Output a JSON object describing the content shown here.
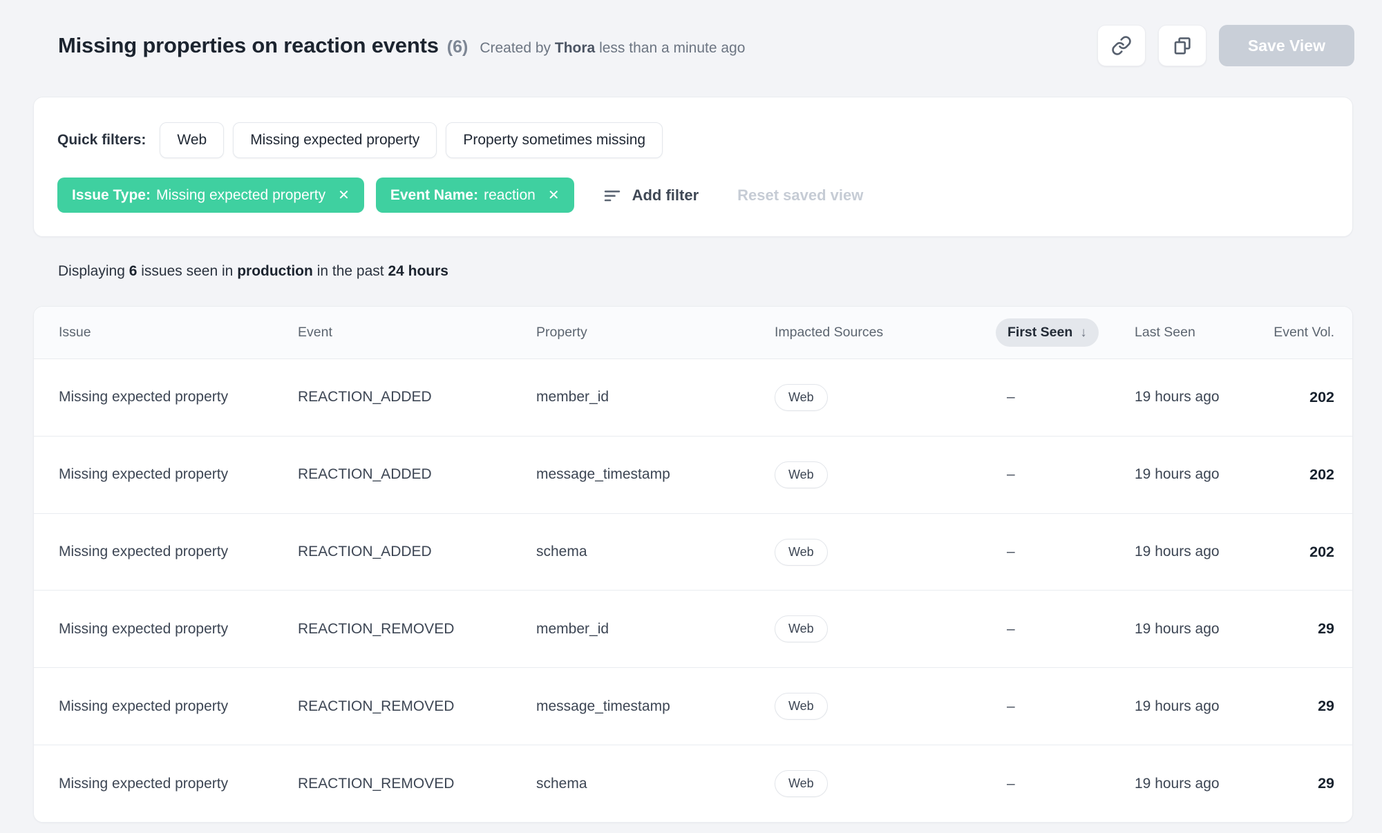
{
  "colors": {
    "accent_green": "#3fd0a0",
    "page_bg": "#f3f4f7",
    "disabled_button_bg": "#c9cfd8"
  },
  "icons": {
    "close_glyph": "✕",
    "sort_desc_glyph": "↓"
  },
  "header": {
    "title": "Missing properties on reaction events",
    "count": "(6)",
    "created_prefix": "Created by",
    "created_name": "Thora",
    "created_suffix": "less than a minute ago",
    "save_view_label": "Save View"
  },
  "filters": {
    "quick_filters_label": "Quick filters:",
    "quick_filters": [
      "Web",
      "Missing expected property",
      "Property sometimes missing"
    ],
    "active_filters": [
      {
        "label": "Issue Type:",
        "value": "Missing expected property"
      },
      {
        "label": "Event Name:",
        "value": "reaction"
      }
    ],
    "add_filter_label": "Add filter",
    "reset_label": "Reset saved view"
  },
  "summary": {
    "prefix": "Displaying",
    "count": "6",
    "mid1": "issues seen in",
    "environment": "production",
    "mid2": "in the past",
    "range": "24 hours"
  },
  "table": {
    "columns": [
      "Issue",
      "Event",
      "Property",
      "Impacted Sources",
      "First Seen",
      "Last Seen",
      "Event Vol."
    ],
    "sorted_by": "First Seen",
    "sort_direction": "desc",
    "rows": [
      {
        "issue": "Missing expected property",
        "event": "REACTION_ADDED",
        "property": "member_id",
        "sources": [
          "Web"
        ],
        "first_seen": "–",
        "last_seen": "19 hours ago",
        "event_vol": "202"
      },
      {
        "issue": "Missing expected property",
        "event": "REACTION_ADDED",
        "property": "message_timestamp",
        "sources": [
          "Web"
        ],
        "first_seen": "–",
        "last_seen": "19 hours ago",
        "event_vol": "202"
      },
      {
        "issue": "Missing expected property",
        "event": "REACTION_ADDED",
        "property": "schema",
        "sources": [
          "Web"
        ],
        "first_seen": "–",
        "last_seen": "19 hours ago",
        "event_vol": "202"
      },
      {
        "issue": "Missing expected property",
        "event": "REACTION_REMOVED",
        "property": "member_id",
        "sources": [
          "Web"
        ],
        "first_seen": "–",
        "last_seen": "19 hours ago",
        "event_vol": "29"
      },
      {
        "issue": "Missing expected property",
        "event": "REACTION_REMOVED",
        "property": "message_timestamp",
        "sources": [
          "Web"
        ],
        "first_seen": "–",
        "last_seen": "19 hours ago",
        "event_vol": "29"
      },
      {
        "issue": "Missing expected property",
        "event": "REACTION_REMOVED",
        "property": "schema",
        "sources": [
          "Web"
        ],
        "first_seen": "–",
        "last_seen": "19 hours ago",
        "event_vol": "29"
      }
    ]
  }
}
